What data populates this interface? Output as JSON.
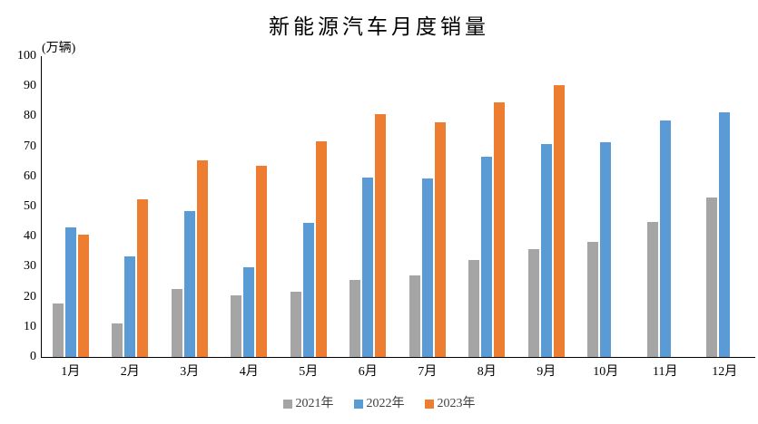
{
  "title": "新能源汽车月度销量",
  "unit_label": "(万辆)",
  "chart_data": {
    "type": "bar",
    "title": "新能源汽车月度销量",
    "ylabel": "(万辆)",
    "xlabel": "",
    "categories": [
      "1月",
      "2月",
      "3月",
      "4月",
      "5月",
      "6月",
      "7月",
      "8月",
      "9月",
      "10月",
      "11月",
      "12月"
    ],
    "series": [
      {
        "name": "2021年",
        "color": "#A5A5A5",
        "values": [
          17.9,
          11.0,
          22.6,
          20.6,
          21.7,
          25.6,
          27.1,
          32.1,
          35.7,
          38.3,
          45.0,
          53.1
        ]
      },
      {
        "name": "2022年",
        "color": "#5B9BD5",
        "values": [
          43.1,
          33.4,
          48.4,
          29.9,
          44.7,
          59.6,
          59.3,
          66.6,
          70.8,
          71.4,
          78.6,
          81.4
        ]
      },
      {
        "name": "2023年",
        "color": "#ED7D31",
        "values": [
          40.8,
          52.5,
          65.3,
          63.6,
          71.7,
          80.6,
          78.0,
          84.6,
          90.4,
          null,
          null,
          null
        ]
      }
    ],
    "ylim": [
      0,
      100
    ],
    "ytick_step": 10,
    "yticks": [
      0,
      10,
      20,
      30,
      40,
      50,
      60,
      70,
      80,
      90,
      100
    ],
    "grid": false,
    "legend_position": "bottom",
    "axis_color": "#000000",
    "text_color": "#000000",
    "legend_text_color": "#404040"
  }
}
